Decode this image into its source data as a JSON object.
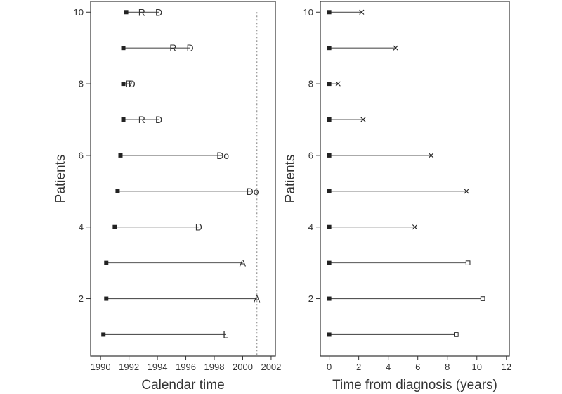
{
  "chart_data": [
    {
      "type": "line",
      "panel": "left",
      "xlabel": "Calendar time",
      "ylabel": "Patients",
      "xlim": [
        1989.3,
        2002.3
      ],
      "ylim": [
        0.4,
        10.3
      ],
      "xticks": [
        1990,
        1992,
        1994,
        1996,
        1998,
        2000,
        2002
      ],
      "yticks": [
        2,
        4,
        6,
        8,
        10
      ],
      "reference_line": {
        "x": 2001,
        "style": "dotted"
      },
      "patients": [
        {
          "id": 10,
          "start": 1991.8,
          "end": 1994.1,
          "events": [
            {
              "x": 1992.9,
              "label": "R"
            },
            {
              "x": 1994.1,
              "label": "D"
            }
          ]
        },
        {
          "id": 9,
          "start": 1991.6,
          "end": 1996.3,
          "events": [
            {
              "x": 1995.1,
              "label": "R"
            },
            {
              "x": 1996.3,
              "label": "D"
            }
          ]
        },
        {
          "id": 8,
          "start": 1991.6,
          "end": 1992.2,
          "events": [
            {
              "x": 1992.0,
              "label": "R"
            },
            {
              "x": 1992.2,
              "label": "D"
            }
          ]
        },
        {
          "id": 7,
          "start": 1991.6,
          "end": 1994.1,
          "events": [
            {
              "x": 1992.9,
              "label": "R"
            },
            {
              "x": 1994.1,
              "label": "D"
            }
          ]
        },
        {
          "id": 6,
          "start": 1991.4,
          "end": 1998.6,
          "events": [
            {
              "x": 1998.6,
              "label": "Do"
            }
          ]
        },
        {
          "id": 5,
          "start": 1991.2,
          "end": 2000.7,
          "events": [
            {
              "x": 2000.7,
              "label": "Do"
            }
          ]
        },
        {
          "id": 4,
          "start": 1991.0,
          "end": 1996.9,
          "events": [
            {
              "x": 1996.9,
              "label": "D"
            }
          ]
        },
        {
          "id": 3,
          "start": 1990.4,
          "end": 2000.0,
          "events": [
            {
              "x": 2000.0,
              "label": "A"
            }
          ]
        },
        {
          "id": 2,
          "start": 1990.4,
          "end": 2001.0,
          "events": [
            {
              "x": 2001.0,
              "label": "A"
            }
          ]
        },
        {
          "id": 1,
          "start": 1990.2,
          "end": 1998.8,
          "events": [
            {
              "x": 1998.8,
              "label": "L"
            }
          ]
        }
      ]
    },
    {
      "type": "line",
      "panel": "right",
      "xlabel": "Time from diagnosis (years)",
      "ylabel": "Patients",
      "xlim": [
        -0.6,
        12.2
      ],
      "ylim": [
        0.4,
        10.3
      ],
      "xticks": [
        0,
        2,
        4,
        6,
        8,
        10,
        12
      ],
      "yticks": [
        2,
        4,
        6,
        8,
        10
      ],
      "patients": [
        {
          "id": 10,
          "start": 0,
          "end": 2.2,
          "end_marker": "cross"
        },
        {
          "id": 9,
          "start": 0,
          "end": 4.5,
          "end_marker": "cross"
        },
        {
          "id": 8,
          "start": 0,
          "end": 0.6,
          "end_marker": "cross"
        },
        {
          "id": 7,
          "start": 0,
          "end": 2.3,
          "end_marker": "cross"
        },
        {
          "id": 6,
          "start": 0,
          "end": 6.9,
          "end_marker": "cross"
        },
        {
          "id": 5,
          "start": 0,
          "end": 9.3,
          "end_marker": "cross"
        },
        {
          "id": 4,
          "start": 0,
          "end": 5.8,
          "end_marker": "cross"
        },
        {
          "id": 3,
          "start": 0,
          "end": 9.4,
          "end_marker": "square"
        },
        {
          "id": 2,
          "start": 0,
          "end": 10.4,
          "end_marker": "square"
        },
        {
          "id": 1,
          "start": 0,
          "end": 8.6,
          "end_marker": "square"
        }
      ]
    }
  ],
  "colors": {
    "axis": "#333333",
    "line": "#555555",
    "marker": "#222222",
    "reference": "#9a9a9a"
  }
}
